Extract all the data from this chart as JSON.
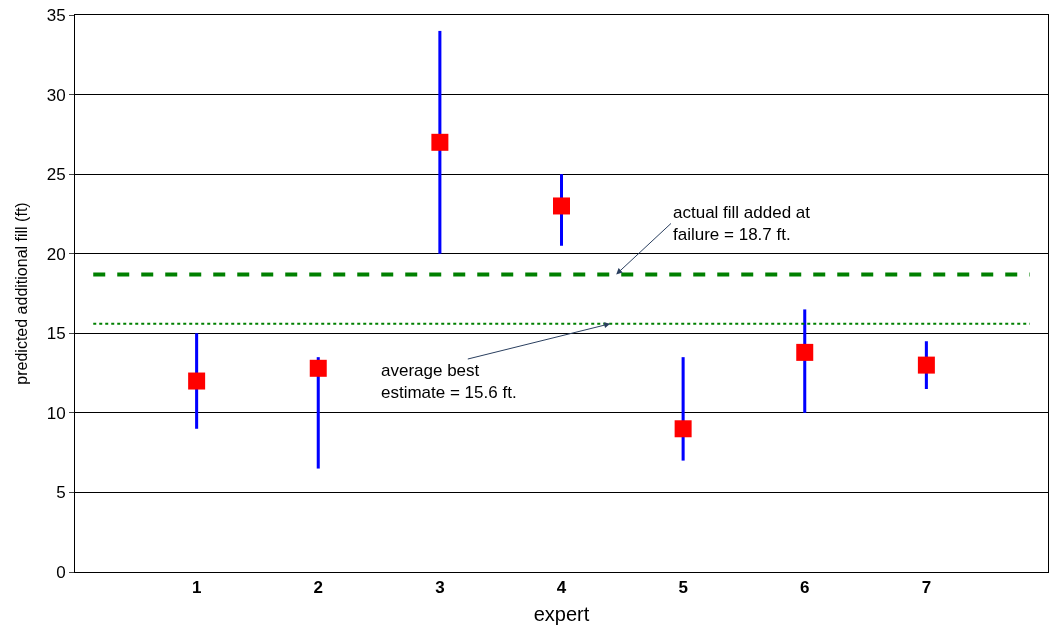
{
  "chart_data": {
    "type": "scatter",
    "xlabel": "expert",
    "ylabel": "predicted additional fill (ft)",
    "categories": [
      "1",
      "2",
      "3",
      "4",
      "5",
      "6",
      "7"
    ],
    "series": [
      {
        "type": "bar",
        "color": "#0000ff",
        "base": [
          9.0,
          6.5,
          20.0,
          20.5,
          7.0,
          10.0,
          11.5
        ],
        "values": [
          6.0,
          7.0,
          14.0,
          4.5,
          6.5,
          6.5,
          3.0
        ]
      },
      {
        "color": "#ff0000",
        "values": [
          12.0,
          12.8,
          27.0,
          23.0,
          9.0,
          13.8,
          13.0
        ]
      }
    ],
    "marker": "square",
    "ylim": [
      0,
      35
    ],
    "yticks": [
      0,
      5,
      10,
      15,
      20,
      25,
      30,
      35
    ],
    "grid": "y",
    "ref_lines": [
      {
        "axis": "y",
        "value": 18.7,
        "label": "actual fill added at\nfailure = 18.7 ft.",
        "color": "#008000",
        "line_style": "dashed"
      },
      {
        "axis": "y",
        "value": 15.6,
        "label": "average best\nestimate = 15.6 ft.",
        "color": "#008000",
        "line_style": "dotted"
      }
    ]
  }
}
